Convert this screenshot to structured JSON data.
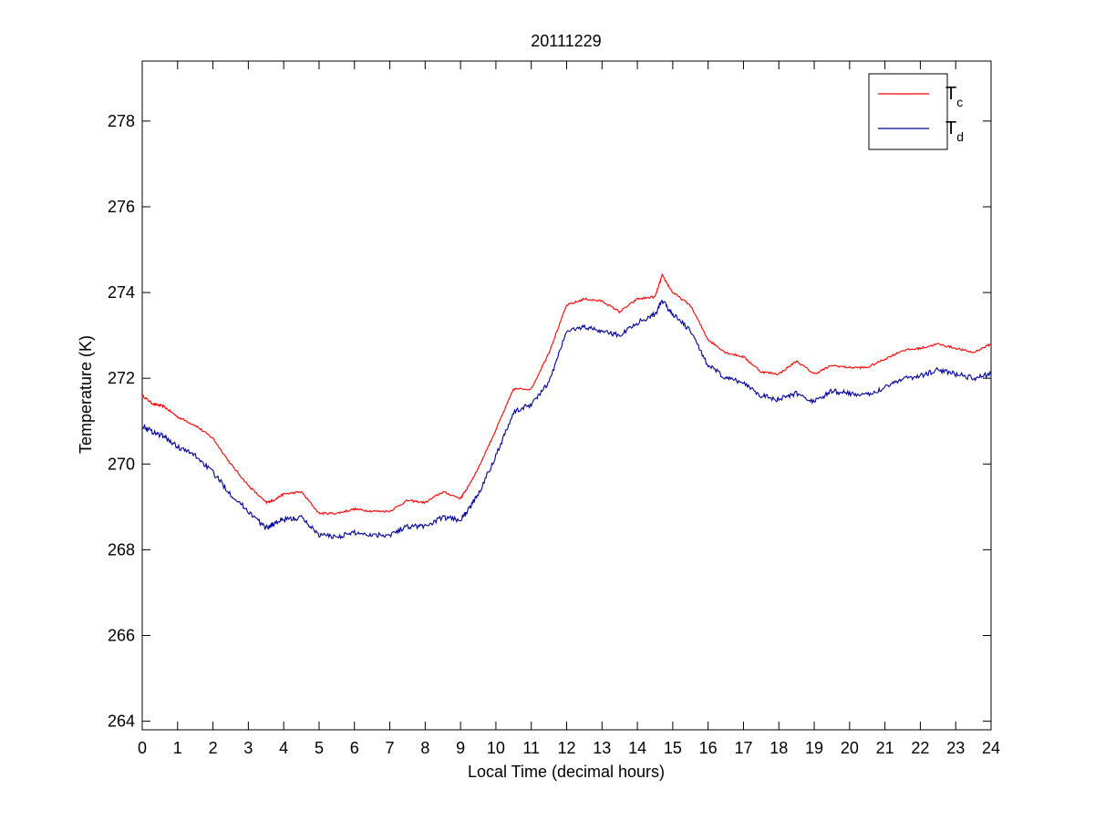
{
  "chart_data": {
    "type": "line",
    "title": "20111229",
    "xlabel": "Local Time (decimal hours)",
    "ylabel": "Temperature (K)",
    "xlim": [
      0,
      24
    ],
    "ylim": [
      263.8,
      279.4
    ],
    "xticks": [
      0,
      1,
      2,
      3,
      4,
      5,
      6,
      7,
      8,
      9,
      10,
      11,
      12,
      13,
      14,
      15,
      16,
      17,
      18,
      19,
      20,
      21,
      22,
      23,
      24
    ],
    "yticks": [
      264,
      266,
      268,
      270,
      272,
      274,
      276,
      278
    ],
    "grid": false,
    "legend_position": "top-right",
    "series": [
      {
        "name_main": "T",
        "name_sub": "c",
        "color": "#ff0000",
        "x": [
          0,
          0.3,
          0.6,
          1.0,
          1.5,
          2.0,
          2.5,
          3.0,
          3.5,
          3.7,
          4.0,
          4.5,
          5.0,
          5.5,
          6.0,
          6.5,
          7.0,
          7.5,
          8.0,
          8.5,
          9.0,
          9.2,
          9.5,
          10.0,
          10.5,
          11.0,
          11.5,
          12.0,
          12.5,
          13.0,
          13.5,
          14.0,
          14.5,
          14.7,
          15.0,
          15.5,
          16.0,
          16.5,
          17.0,
          17.5,
          18.0,
          18.5,
          19.0,
          19.5,
          20.0,
          20.5,
          21.0,
          21.5,
          22.0,
          22.5,
          23.0,
          23.5,
          24.0
        ],
        "y": [
          271.6,
          271.4,
          271.35,
          271.1,
          270.9,
          270.6,
          270.0,
          269.5,
          269.1,
          269.15,
          269.3,
          269.35,
          268.85,
          268.85,
          268.95,
          268.9,
          268.9,
          269.15,
          269.1,
          269.35,
          269.2,
          269.45,
          269.9,
          270.8,
          271.75,
          271.75,
          272.6,
          273.7,
          273.85,
          273.8,
          273.55,
          273.85,
          273.9,
          274.4,
          274.0,
          273.7,
          272.9,
          272.6,
          272.5,
          272.15,
          272.1,
          272.4,
          272.1,
          272.3,
          272.25,
          272.25,
          272.45,
          272.65,
          272.7,
          272.8,
          272.7,
          272.6,
          272.8
        ]
      },
      {
        "name_main": "T",
        "name_sub": "d",
        "color": "#000099",
        "x": [
          0,
          0.3,
          0.6,
          1.0,
          1.5,
          2.0,
          2.5,
          3.0,
          3.5,
          3.7,
          4.0,
          4.5,
          5.0,
          5.5,
          6.0,
          6.5,
          7.0,
          7.5,
          8.0,
          8.5,
          9.0,
          9.2,
          9.5,
          10.0,
          10.5,
          11.0,
          11.5,
          12.0,
          12.5,
          13.0,
          13.5,
          14.0,
          14.5,
          14.7,
          15.0,
          15.5,
          16.0,
          16.5,
          17.0,
          17.5,
          18.0,
          18.5,
          19.0,
          19.5,
          20.0,
          20.5,
          21.0,
          21.5,
          22.0,
          22.5,
          23.0,
          23.5,
          24.0
        ],
        "y": [
          270.9,
          270.75,
          270.65,
          270.4,
          270.2,
          269.8,
          269.3,
          268.9,
          268.5,
          268.6,
          268.7,
          268.75,
          268.35,
          268.3,
          268.4,
          268.35,
          268.35,
          268.55,
          268.55,
          268.75,
          268.7,
          268.9,
          269.3,
          270.2,
          271.2,
          271.4,
          271.9,
          273.1,
          273.2,
          273.1,
          273.0,
          273.3,
          273.5,
          273.8,
          273.5,
          273.1,
          272.3,
          272.0,
          271.9,
          271.6,
          271.5,
          271.65,
          271.45,
          271.7,
          271.65,
          271.6,
          271.8,
          272.0,
          272.05,
          272.2,
          272.1,
          272.0,
          272.1
        ]
      }
    ]
  }
}
